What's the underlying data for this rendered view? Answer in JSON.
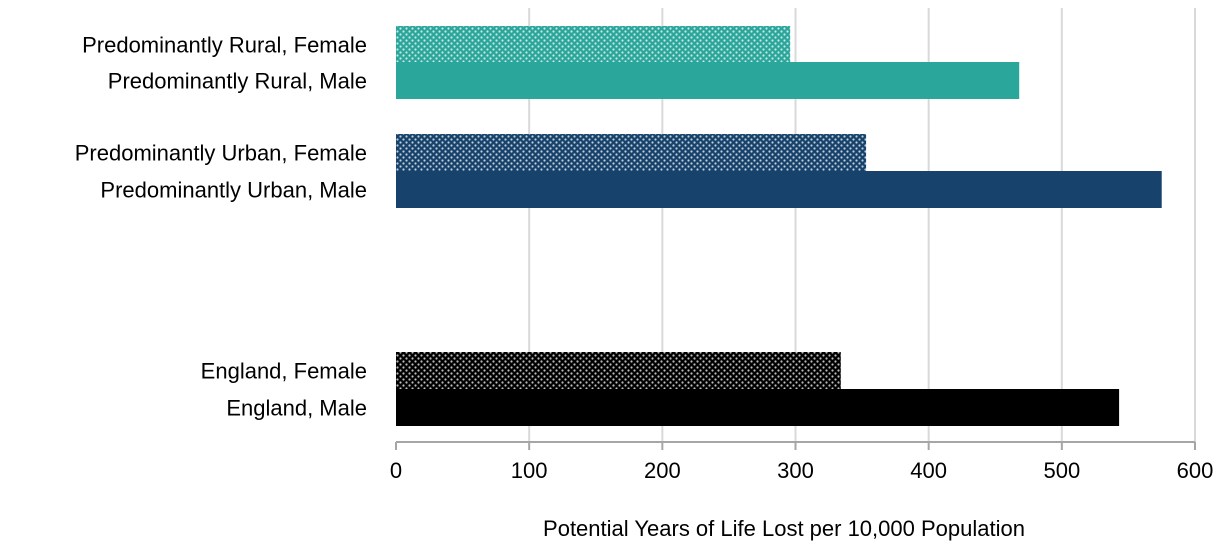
{
  "chart_data": {
    "type": "bar",
    "orientation": "horizontal",
    "categories": [
      "Predominantly Rural, Female",
      "Predominantly Rural, Male",
      "Predominantly Urban, Female",
      "Predominantly Urban, Male",
      "England, Female",
      "England, Male"
    ],
    "values": [
      296,
      468,
      353,
      575,
      334,
      543
    ],
    "colors": [
      "#2aa69a",
      "#2aa69a",
      "#16426b",
      "#16426b",
      "#000000",
      "#000000"
    ],
    "patterned": [
      true,
      false,
      true,
      false,
      true,
      false
    ],
    "xlabel": "Potential Years of Life Lost per 10,000 Population",
    "ylabel": "",
    "xlim": [
      0,
      600
    ],
    "xticks": [
      0,
      100,
      200,
      300,
      400,
      500,
      600
    ],
    "xtick_labels": [
      "0",
      "100",
      "200",
      "300",
      "400",
      "500",
      "600"
    ],
    "grid": true,
    "legend": "none"
  }
}
